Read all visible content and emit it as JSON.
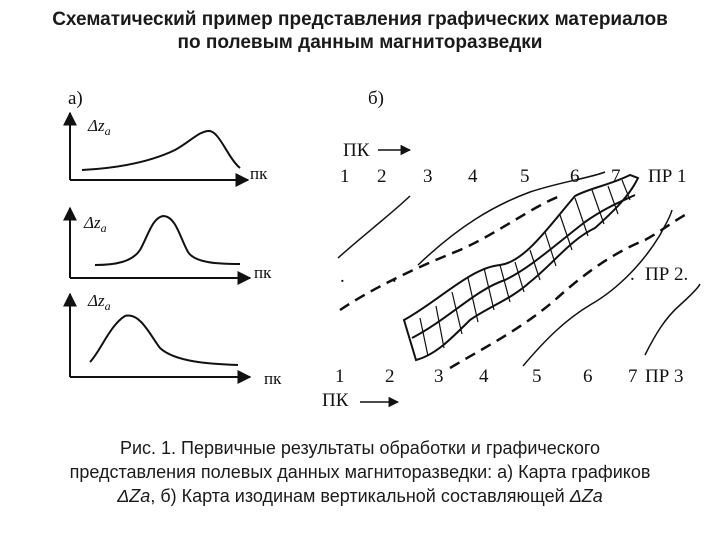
{
  "title": {
    "line1": "Схематический пример представления графических материалов",
    "line2": "по полевым данным магниторазведки"
  },
  "panel_a": {
    "label": "а)",
    "graphs": [
      {
        "y_label": "Δz",
        "y_sub": "a",
        "x_label": "пк"
      },
      {
        "y_label": "Δz",
        "y_sub": "a",
        "x_label": "пк"
      },
      {
        "y_label": "Δz",
        "y_sub": "a",
        "x_label": "пк"
      }
    ]
  },
  "panel_b": {
    "label": "б)",
    "pk_top": "ПК",
    "pk_bottom": "ПК",
    "profile1": {
      "stations": [
        "1",
        "2",
        "3",
        "4",
        "5",
        "6",
        "7"
      ],
      "name": "ПР 1"
    },
    "profile2": {
      "name": "ПР 2."
    },
    "profile3": {
      "stations": [
        "1",
        "2",
        "3",
        "4",
        "5",
        "6",
        "7"
      ],
      "name": "ПР 3"
    }
  },
  "caption": {
    "line1": "Рис. 1. Первичные результаты обработки и графического",
    "line2": "представления полевых данных магниторазведки: а) Карта графиков",
    "line3_a": "ΔZa",
    "line3_b": ", б) Карта изодинам вертикальной составляющей ",
    "line3_c": "ΔZa"
  }
}
